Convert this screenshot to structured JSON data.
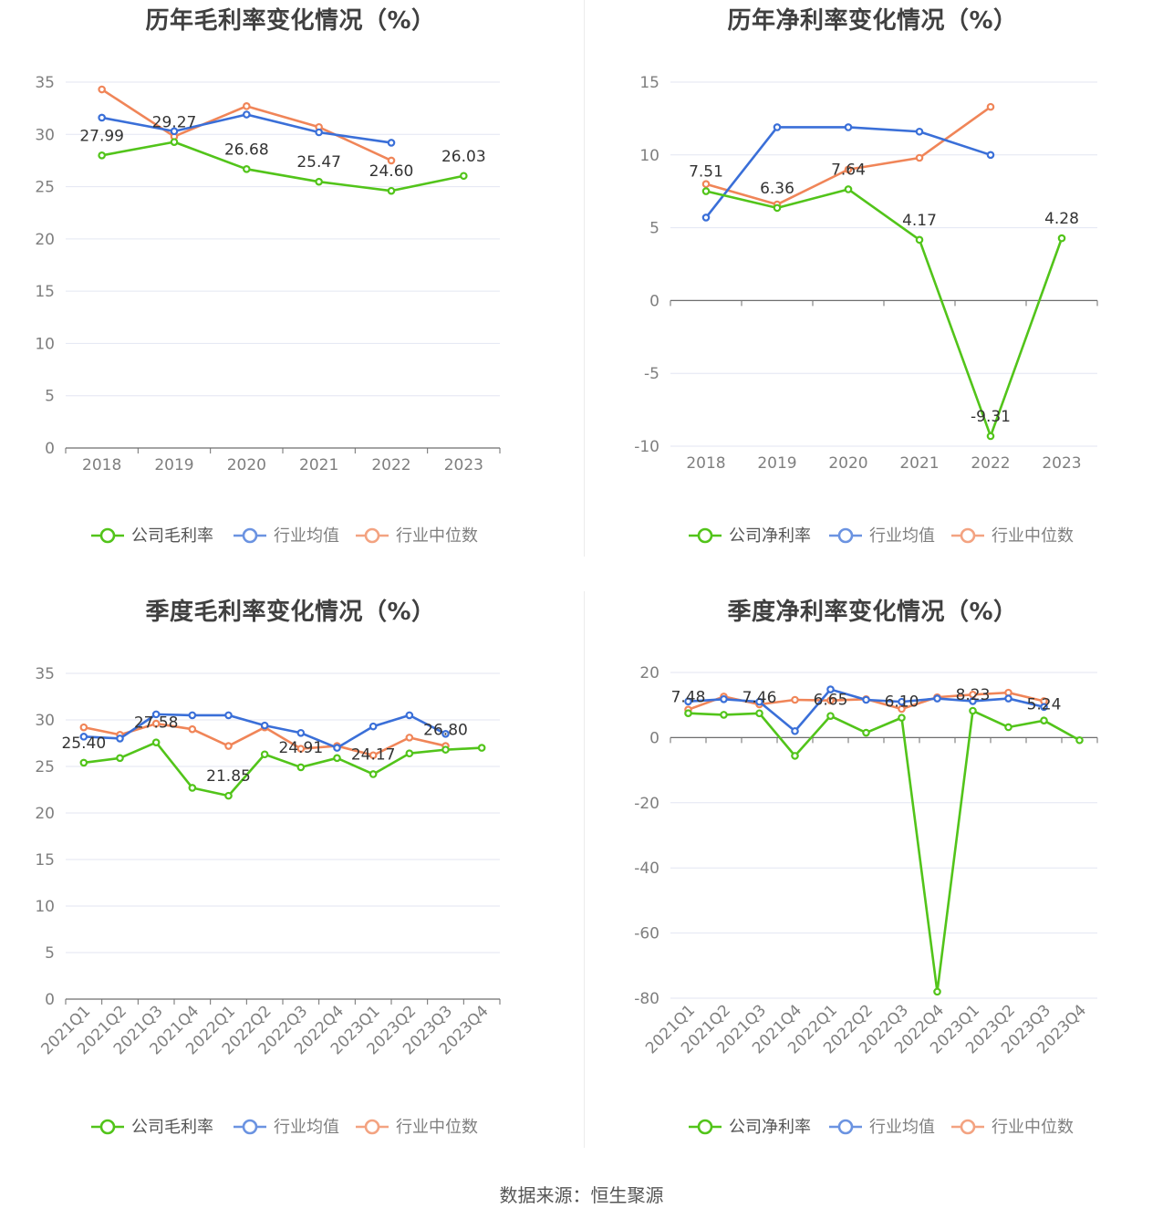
{
  "footer": {
    "source": "数据来源：恒生聚源"
  },
  "colors": {
    "company": "#52c41a",
    "avg": "#3a6fd8",
    "median": "#f08558",
    "grid": "#e3e6f2",
    "axis": "#6e6e6e"
  },
  "charts": [
    {
      "title": "历年毛利率变化情况（%）",
      "chart_data": {
        "type": "line",
        "categories": [
          "2018",
          "2019",
          "2020",
          "2021",
          "2022",
          "2023"
        ],
        "ylim": [
          0,
          35
        ],
        "yticks": [
          0,
          5,
          10,
          15,
          20,
          25,
          30,
          35
        ],
        "legend_position": "bottom",
        "series": [
          {
            "name": "公司毛利率",
            "role": "company",
            "values": [
              27.99,
              29.27,
              26.68,
              25.47,
              24.6,
              26.03
            ],
            "labels": [
              "27.99",
              "29.27",
              "26.68",
              "25.47",
              "24.60",
              "26.03"
            ]
          },
          {
            "name": "行业均值",
            "role": "avg",
            "values": [
              31.6,
              30.3,
              31.9,
              30.2,
              29.2,
              null
            ]
          },
          {
            "name": "行业中位数",
            "role": "median",
            "values": [
              34.3,
              29.8,
              32.7,
              30.7,
              27.5,
              null
            ]
          }
        ]
      }
    },
    {
      "title": "历年净利率变化情况（%）",
      "chart_data": {
        "type": "line",
        "categories": [
          "2018",
          "2019",
          "2020",
          "2021",
          "2022",
          "2023"
        ],
        "ylim": [
          -10,
          15
        ],
        "yticks": [
          -10,
          -5,
          0,
          5,
          10,
          15
        ],
        "legend_position": "bottom",
        "series": [
          {
            "name": "公司净利率",
            "role": "company",
            "values": [
              7.51,
              6.36,
              7.64,
              4.17,
              -9.31,
              4.28
            ],
            "labels": [
              "7.51",
              "6.36",
              "7.64",
              "4.17",
              "-9.31",
              "4.28"
            ]
          },
          {
            "name": "行业均值",
            "role": "avg",
            "values": [
              5.7,
              11.9,
              11.9,
              11.6,
              10.0,
              null
            ]
          },
          {
            "name": "行业中位数",
            "role": "median",
            "values": [
              8.0,
              6.6,
              9.0,
              9.8,
              13.3,
              null
            ]
          }
        ]
      }
    },
    {
      "title": "季度毛利率变化情况（%）",
      "chart_data": {
        "type": "line",
        "categories": [
          "2021Q1",
          "2021Q2",
          "2021Q3",
          "2021Q4",
          "2022Q1",
          "2022Q2",
          "2022Q3",
          "2022Q4",
          "2023Q1",
          "2023Q2",
          "2023Q3",
          "2023Q4"
        ],
        "ylim": [
          0,
          35
        ],
        "yticks": [
          0,
          5,
          10,
          15,
          20,
          25,
          30,
          35
        ],
        "legend_position": "bottom",
        "series": [
          {
            "name": "公司毛利率",
            "role": "company",
            "values": [
              25.4,
              25.9,
              27.58,
              22.7,
              21.85,
              26.3,
              24.91,
              25.9,
              24.17,
              26.4,
              26.8,
              27.0
            ],
            "labels": [
              "25.40",
              "",
              "27.58",
              "",
              "21.85",
              "",
              "24.91",
              "",
              "24.17",
              "",
              "26.80",
              ""
            ]
          },
          {
            "name": "行业均值",
            "role": "avg",
            "values": [
              28.2,
              28.0,
              30.6,
              30.5,
              30.5,
              29.4,
              28.6,
              27.0,
              29.3,
              30.5,
              28.5,
              null
            ]
          },
          {
            "name": "行业中位数",
            "role": "median",
            "values": [
              29.2,
              28.4,
              29.6,
              29.0,
              27.2,
              29.2,
              26.9,
              27.2,
              26.2,
              28.1,
              27.2,
              null
            ]
          }
        ]
      }
    },
    {
      "title": "季度净利率变化情况（%）",
      "chart_data": {
        "type": "line",
        "categories": [
          "2021Q1",
          "2021Q2",
          "2021Q3",
          "2021Q4",
          "2022Q1",
          "2022Q2",
          "2022Q3",
          "2022Q4",
          "2023Q1",
          "2023Q2",
          "2023Q3",
          "2023Q4"
        ],
        "ylim": [
          -80,
          20
        ],
        "yticks": [
          -80,
          -60,
          -40,
          -20,
          0,
          20
        ],
        "legend_position": "bottom",
        "series": [
          {
            "name": "公司净利率",
            "role": "company",
            "values": [
              7.48,
              7.0,
              7.46,
              -5.6,
              6.65,
              1.5,
              6.1,
              -78.0,
              8.23,
              3.2,
              5.24,
              -0.8
            ],
            "labels": [
              "7.48",
              "",
              "7.46",
              "",
              "6.65",
              "",
              "6.10",
              "",
              "8.23",
              "",
              "5.24",
              ""
            ]
          },
          {
            "name": "行业均值",
            "role": "avg",
            "values": [
              11.1,
              11.8,
              11.0,
              2.0,
              14.8,
              11.6,
              11.0,
              12.0,
              11.2,
              12.0,
              9.4,
              null
            ]
          },
          {
            "name": "行业中位数",
            "role": "median",
            "values": [
              8.6,
              12.6,
              10.2,
              11.6,
              11.4,
              11.8,
              8.8,
              12.4,
              13.2,
              13.8,
              11.2,
              null
            ]
          }
        ]
      }
    }
  ]
}
